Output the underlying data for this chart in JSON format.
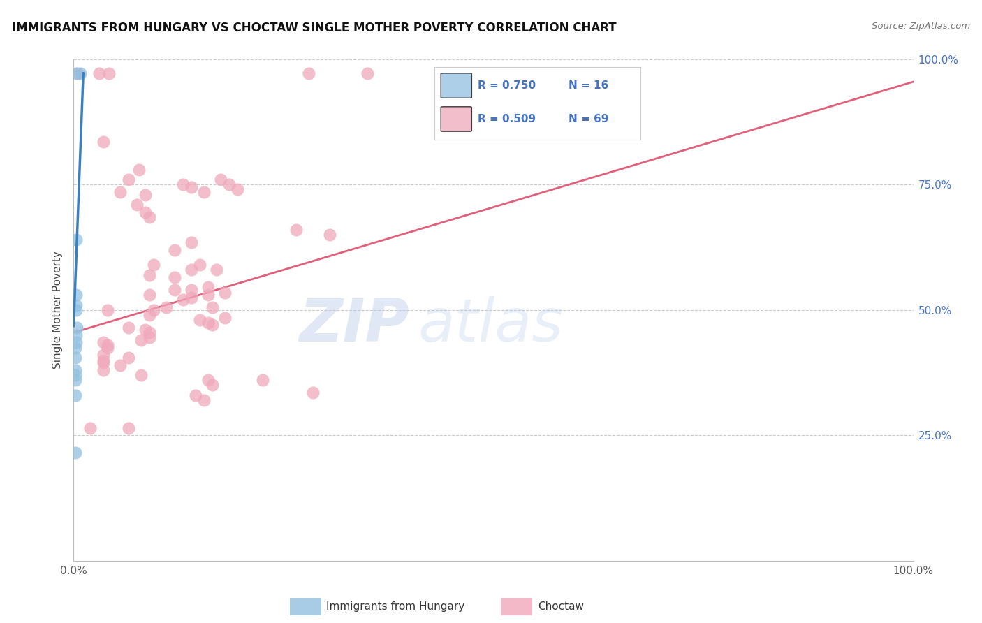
{
  "title": "IMMIGRANTS FROM HUNGARY VS CHOCTAW SINGLE MOTHER POVERTY CORRELATION CHART",
  "source": "Source: ZipAtlas.com",
  "ylabel_left": "Single Mother Poverty",
  "xlim": [
    0,
    1.0
  ],
  "ylim": [
    0,
    1.0
  ],
  "grid_color": "#cccccc",
  "watermark_text": "ZIP",
  "watermark_text2": "atlas",
  "legend_R1": "R = 0.750",
  "legend_N1": "N = 16",
  "legend_R2": "R = 0.509",
  "legend_N2": "N = 69",
  "blue_color": "#92c0e0",
  "pink_color": "#f0a8bc",
  "blue_line_color": "#3a7fc1",
  "pink_line_color": "#e0607a",
  "blue_scatter": [
    [
      0.003,
      0.972
    ],
    [
      0.008,
      0.972
    ],
    [
      0.003,
      0.64
    ],
    [
      0.003,
      0.53
    ],
    [
      0.003,
      0.51
    ],
    [
      0.003,
      0.5
    ],
    [
      0.004,
      0.465
    ],
    [
      0.003,
      0.45
    ],
    [
      0.003,
      0.435
    ],
    [
      0.002,
      0.425
    ],
    [
      0.002,
      0.405
    ],
    [
      0.002,
      0.38
    ],
    [
      0.002,
      0.37
    ],
    [
      0.002,
      0.36
    ],
    [
      0.002,
      0.33
    ],
    [
      0.002,
      0.215
    ]
  ],
  "pink_scatter": [
    [
      0.005,
      0.972
    ],
    [
      0.03,
      0.972
    ],
    [
      0.042,
      0.972
    ],
    [
      0.28,
      0.972
    ],
    [
      0.35,
      0.972
    ],
    [
      0.035,
      0.835
    ],
    [
      0.078,
      0.78
    ],
    [
      0.065,
      0.76
    ],
    [
      0.175,
      0.76
    ],
    [
      0.185,
      0.75
    ],
    [
      0.195,
      0.74
    ],
    [
      0.055,
      0.735
    ],
    [
      0.085,
      0.73
    ],
    [
      0.13,
      0.75
    ],
    [
      0.14,
      0.745
    ],
    [
      0.155,
      0.735
    ],
    [
      0.075,
      0.71
    ],
    [
      0.085,
      0.695
    ],
    [
      0.09,
      0.685
    ],
    [
      0.265,
      0.66
    ],
    [
      0.305,
      0.65
    ],
    [
      0.14,
      0.635
    ],
    [
      0.12,
      0.62
    ],
    [
      0.095,
      0.59
    ],
    [
      0.15,
      0.59
    ],
    [
      0.14,
      0.58
    ],
    [
      0.17,
      0.58
    ],
    [
      0.09,
      0.57
    ],
    [
      0.12,
      0.565
    ],
    [
      0.16,
      0.545
    ],
    [
      0.14,
      0.54
    ],
    [
      0.12,
      0.54
    ],
    [
      0.18,
      0.535
    ],
    [
      0.09,
      0.53
    ],
    [
      0.16,
      0.53
    ],
    [
      0.14,
      0.525
    ],
    [
      0.13,
      0.52
    ],
    [
      0.165,
      0.505
    ],
    [
      0.11,
      0.505
    ],
    [
      0.095,
      0.5
    ],
    [
      0.04,
      0.5
    ],
    [
      0.09,
      0.49
    ],
    [
      0.18,
      0.485
    ],
    [
      0.15,
      0.48
    ],
    [
      0.16,
      0.475
    ],
    [
      0.165,
      0.47
    ],
    [
      0.065,
      0.465
    ],
    [
      0.085,
      0.46
    ],
    [
      0.09,
      0.455
    ],
    [
      0.09,
      0.445
    ],
    [
      0.08,
      0.44
    ],
    [
      0.035,
      0.435
    ],
    [
      0.04,
      0.43
    ],
    [
      0.04,
      0.425
    ],
    [
      0.035,
      0.41
    ],
    [
      0.065,
      0.405
    ],
    [
      0.035,
      0.4
    ],
    [
      0.035,
      0.395
    ],
    [
      0.055,
      0.39
    ],
    [
      0.035,
      0.38
    ],
    [
      0.08,
      0.37
    ],
    [
      0.16,
      0.36
    ],
    [
      0.165,
      0.35
    ],
    [
      0.225,
      0.36
    ],
    [
      0.145,
      0.33
    ],
    [
      0.155,
      0.32
    ],
    [
      0.285,
      0.335
    ],
    [
      0.02,
      0.265
    ],
    [
      0.065,
      0.265
    ]
  ],
  "blue_line_x": [
    0.0,
    0.0115
  ],
  "blue_line_y": [
    0.468,
    0.972
  ],
  "pink_line_x": [
    0.0,
    1.0
  ],
  "pink_line_y": [
    0.455,
    0.955
  ],
  "background_color": "#ffffff",
  "title_fontsize": 12,
  "right_axis_label_color": "#4472c4",
  "bottom_label_1": "Immigrants from Hungary",
  "bottom_label_2": "Choctaw"
}
